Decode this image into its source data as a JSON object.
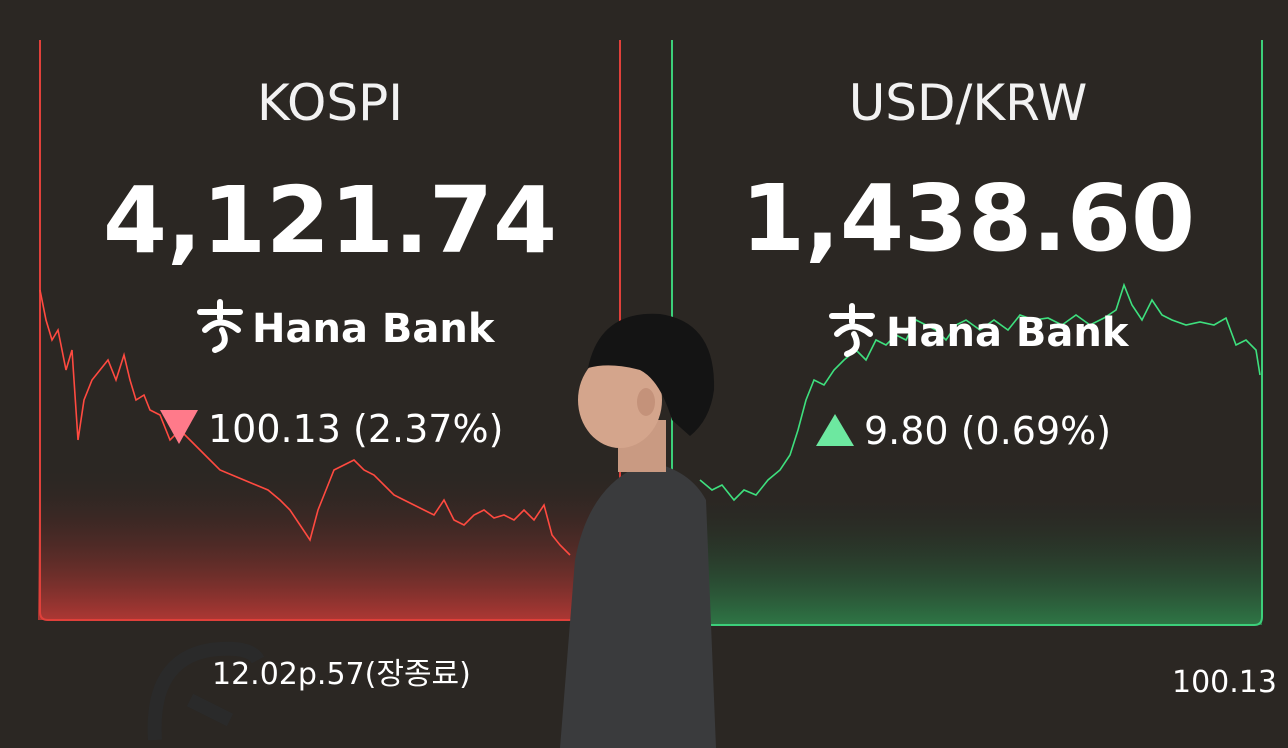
{
  "panels": [
    {
      "title": "KOSPI",
      "value": "4,121.74",
      "brand": "Hana Bank",
      "change": "100.13 (2.37%)"
    },
    {
      "title": "USD/KRW",
      "value": "1,438.60",
      "brand": "Hana Bank",
      "change": "9.80 (0.69%)"
    }
  ],
  "footer": {
    "left": "12.02p.57(장종료)",
    "right": "100.13"
  }
}
